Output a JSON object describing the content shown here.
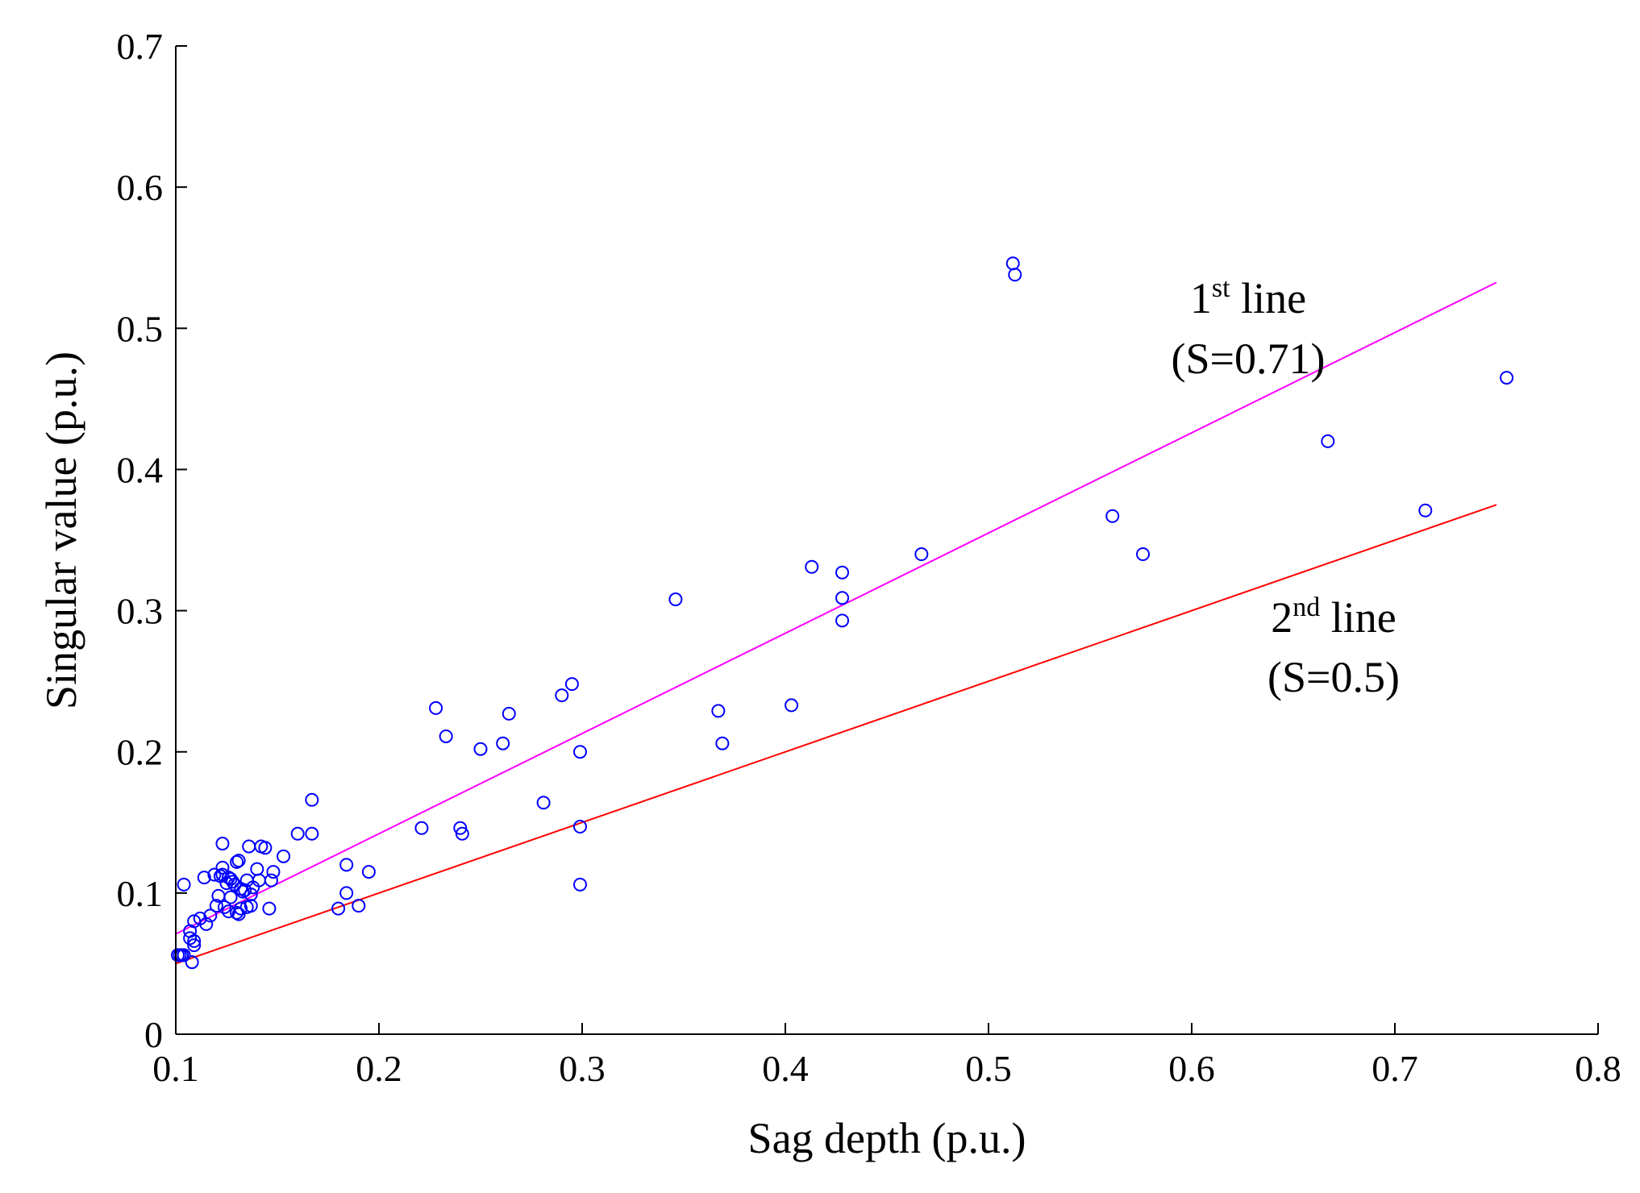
{
  "chart_data": {
    "type": "scatter",
    "title": "",
    "xlabel": "Sag depth (p.u.)",
    "ylabel": "Singular  value (p.u.)",
    "xlim": [
      0.1,
      0.8
    ],
    "ylim": [
      0,
      0.7
    ],
    "xticks": [
      0.1,
      0.2,
      0.3,
      0.4,
      0.5,
      0.6,
      0.7,
      0.8
    ],
    "yticks": [
      0,
      0.1,
      0.2,
      0.3,
      0.4,
      0.5,
      0.6,
      0.7
    ],
    "xtick_labels": [
      "0.1",
      "0.2",
      "0.3",
      "0.4",
      "0.5",
      "0.6",
      "0.7",
      "0.8"
    ],
    "ytick_labels": [
      "0",
      "0.1",
      "0.2",
      "0.3",
      "0.4",
      "0.5",
      "0.6",
      "0.7"
    ],
    "grid": false,
    "marker_color": "#0000ff",
    "points": [
      [
        0.101,
        0.056
      ],
      [
        0.102,
        0.056
      ],
      [
        0.103,
        0.056
      ],
      [
        0.104,
        0.056
      ],
      [
        0.104,
        0.106
      ],
      [
        0.107,
        0.068
      ],
      [
        0.107,
        0.073
      ],
      [
        0.108,
        0.051
      ],
      [
        0.109,
        0.063
      ],
      [
        0.109,
        0.066
      ],
      [
        0.109,
        0.08
      ],
      [
        0.112,
        0.082
      ],
      [
        0.114,
        0.111
      ],
      [
        0.115,
        0.078
      ],
      [
        0.117,
        0.084
      ],
      [
        0.119,
        0.113
      ],
      [
        0.12,
        0.091
      ],
      [
        0.121,
        0.098
      ],
      [
        0.122,
        0.112
      ],
      [
        0.123,
        0.113
      ],
      [
        0.123,
        0.118
      ],
      [
        0.123,
        0.135
      ],
      [
        0.124,
        0.09
      ],
      [
        0.125,
        0.107
      ],
      [
        0.126,
        0.111
      ],
      [
        0.126,
        0.087
      ],
      [
        0.127,
        0.097
      ],
      [
        0.127,
        0.11
      ],
      [
        0.128,
        0.108
      ],
      [
        0.129,
        0.106
      ],
      [
        0.13,
        0.122
      ],
      [
        0.13,
        0.086
      ],
      [
        0.131,
        0.085
      ],
      [
        0.131,
        0.123
      ],
      [
        0.132,
        0.089
      ],
      [
        0.132,
        0.103
      ],
      [
        0.133,
        0.101
      ],
      [
        0.134,
        0.102
      ],
      [
        0.135,
        0.09
      ],
      [
        0.135,
        0.109
      ],
      [
        0.136,
        0.133
      ],
      [
        0.137,
        0.099
      ],
      [
        0.137,
        0.091
      ],
      [
        0.138,
        0.104
      ],
      [
        0.14,
        0.117
      ],
      [
        0.141,
        0.109
      ],
      [
        0.142,
        0.133
      ],
      [
        0.144,
        0.132
      ],
      [
        0.146,
        0.089
      ],
      [
        0.147,
        0.109
      ],
      [
        0.148,
        0.115
      ],
      [
        0.153,
        0.126
      ],
      [
        0.16,
        0.142
      ],
      [
        0.167,
        0.142
      ],
      [
        0.167,
        0.166
      ],
      [
        0.18,
        0.089
      ],
      [
        0.184,
        0.12
      ],
      [
        0.184,
        0.1
      ],
      [
        0.19,
        0.091
      ],
      [
        0.195,
        0.115
      ],
      [
        0.221,
        0.146
      ],
      [
        0.228,
        0.231
      ],
      [
        0.233,
        0.211
      ],
      [
        0.24,
        0.146
      ],
      [
        0.241,
        0.142
      ],
      [
        0.25,
        0.202
      ],
      [
        0.261,
        0.206
      ],
      [
        0.264,
        0.227
      ],
      [
        0.281,
        0.164
      ],
      [
        0.29,
        0.24
      ],
      [
        0.295,
        0.248
      ],
      [
        0.299,
        0.2
      ],
      [
        0.299,
        0.147
      ],
      [
        0.299,
        0.106
      ],
      [
        0.346,
        0.308
      ],
      [
        0.367,
        0.229
      ],
      [
        0.369,
        0.206
      ],
      [
        0.403,
        0.233
      ],
      [
        0.413,
        0.331
      ],
      [
        0.428,
        0.327
      ],
      [
        0.428,
        0.309
      ],
      [
        0.428,
        0.293
      ],
      [
        0.467,
        0.34
      ],
      [
        0.512,
        0.546
      ],
      [
        0.513,
        0.538
      ],
      [
        0.561,
        0.367
      ],
      [
        0.576,
        0.34
      ],
      [
        0.667,
        0.42
      ],
      [
        0.715,
        0.371
      ],
      [
        0.755,
        0.465
      ]
    ],
    "lines": [
      {
        "name": "1st line",
        "slope": 0.71,
        "color": "#ff00ff",
        "x": [
          0.1,
          0.75
        ],
        "y": [
          0.071,
          0.5325
        ],
        "label_main": "1",
        "label_sup": "st",
        "label_rest": " line",
        "label_s": "(S=0.71)"
      },
      {
        "name": "2nd line",
        "slope": 0.5,
        "color": "#ff0000",
        "x": [
          0.1,
          0.75
        ],
        "y": [
          0.05,
          0.375
        ],
        "label_main": "2",
        "label_sup": "nd",
        "label_rest": " line",
        "label_s": "(S=0.5)"
      }
    ]
  }
}
